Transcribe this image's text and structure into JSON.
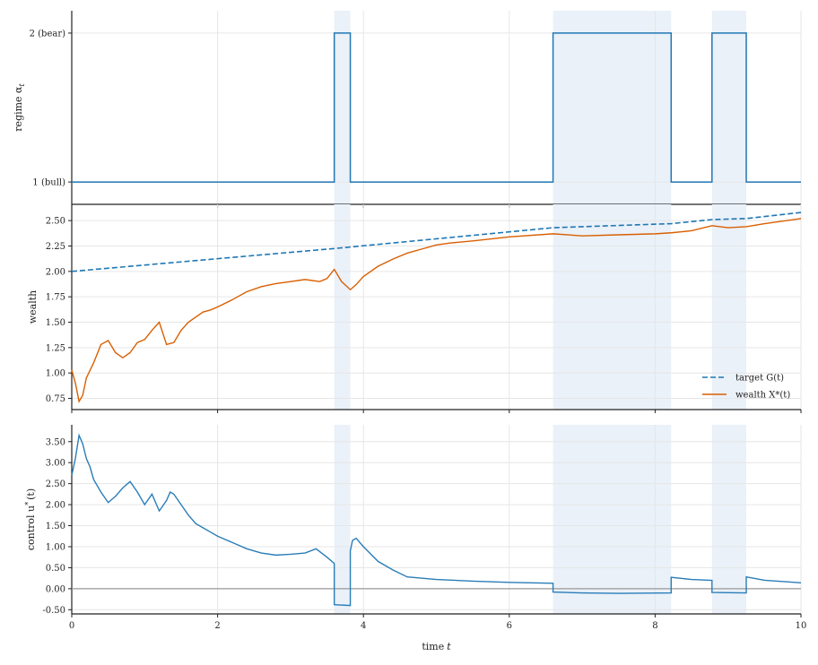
{
  "chart_data": [
    {
      "type": "line",
      "panel": "regime",
      "ylabel": "regime α",
      "ylabel_sub": "t",
      "x_range": [
        0,
        10
      ],
      "y_range": [
        0.85,
        2.15
      ],
      "y_ticks": [
        {
          "value": 1,
          "label": "1 (bull)"
        },
        {
          "value": 2,
          "label": "2 (bear)"
        }
      ],
      "step_x": [
        0,
        3.6,
        3.6,
        3.82,
        3.82,
        6.6,
        6.6,
        8.22,
        8.22,
        8.78,
        8.78,
        9.25,
        9.25,
        10
      ],
      "step_y": [
        1,
        1,
        2,
        2,
        1,
        1,
        2,
        2,
        1,
        1,
        2,
        2,
        1,
        1
      ],
      "grid": true
    },
    {
      "type": "line",
      "panel": "wealth",
      "ylabel": "wealth",
      "x_range": [
        0,
        10
      ],
      "y_range": [
        0.64,
        2.66
      ],
      "y_ticks": [
        0.75,
        1.0,
        1.25,
        1.5,
        1.75,
        2.0,
        2.25,
        2.5
      ],
      "legend_position": "lower-right",
      "series": [
        {
          "name": "target G(t)",
          "style": "dashed",
          "x": [
            0,
            3.6,
            3.82,
            6.6,
            8.22,
            8.78,
            9.25,
            10
          ],
          "y": [
            2.0,
            2.225,
            2.24,
            2.43,
            2.47,
            2.51,
            2.52,
            2.58
          ]
        },
        {
          "name": "wealth X*(t)",
          "style": "solid",
          "x": [
            0,
            0.05,
            0.1,
            0.15,
            0.2,
            0.3,
            0.4,
            0.5,
            0.6,
            0.7,
            0.8,
            0.9,
            1.0,
            1.1,
            1.2,
            1.3,
            1.4,
            1.5,
            1.6,
            1.7,
            1.8,
            1.9,
            2.0,
            2.2,
            2.4,
            2.6,
            2.8,
            3.0,
            3.2,
            3.4,
            3.5,
            3.6,
            3.7,
            3.82,
            3.9,
            4.0,
            4.2,
            4.4,
            4.6,
            4.8,
            5.0,
            5.2,
            5.5,
            6.0,
            6.6,
            7.0,
            7.5,
            8.0,
            8.22,
            8.5,
            8.78,
            9.0,
            9.25,
            9.5,
            10
          ],
          "y": [
            1.03,
            0.9,
            0.72,
            0.78,
            0.95,
            1.1,
            1.28,
            1.32,
            1.2,
            1.15,
            1.2,
            1.3,
            1.33,
            1.42,
            1.5,
            1.28,
            1.3,
            1.42,
            1.5,
            1.55,
            1.6,
            1.62,
            1.65,
            1.72,
            1.8,
            1.85,
            1.88,
            1.9,
            1.92,
            1.9,
            1.93,
            2.02,
            1.9,
            1.82,
            1.87,
            1.95,
            2.05,
            2.12,
            2.18,
            2.22,
            2.26,
            2.28,
            2.3,
            2.34,
            2.37,
            2.35,
            2.36,
            2.37,
            2.38,
            2.4,
            2.45,
            2.43,
            2.44,
            2.47,
            2.52
          ]
        }
      ],
      "grid": true
    },
    {
      "type": "line",
      "panel": "control",
      "ylabel": "control u",
      "ylabel_sup": "*",
      "ylabel_suffix": "(t)",
      "xlabel": "time",
      "xlabel_var": "t",
      "x_range": [
        0,
        10
      ],
      "x_ticks": [
        0,
        2,
        4,
        6,
        8,
        10
      ],
      "y_range": [
        -0.6,
        3.9
      ],
      "y_ticks": [
        -0.5,
        0.0,
        0.5,
        1.0,
        1.5,
        2.0,
        2.5,
        3.0,
        3.5
      ],
      "zero_line": true,
      "series": [
        {
          "name": "",
          "x": [
            0,
            0.05,
            0.1,
            0.15,
            0.2,
            0.25,
            0.3,
            0.4,
            0.5,
            0.6,
            0.7,
            0.8,
            0.9,
            1.0,
            1.1,
            1.2,
            1.3,
            1.35,
            1.4,
            1.5,
            1.6,
            1.7,
            1.8,
            1.9,
            2.0,
            2.2,
            2.4,
            2.6,
            2.8,
            3.0,
            3.2,
            3.35,
            3.5,
            3.6,
            3.6,
            3.82,
            3.82,
            3.85,
            3.9,
            4.0,
            4.2,
            4.4,
            4.6,
            5.0,
            5.5,
            6.0,
            6.6,
            6.6,
            7.0,
            7.5,
            8.22,
            8.22,
            8.5,
            8.78,
            8.78,
            9.25,
            9.25,
            9.5,
            10
          ],
          "y": [
            2.7,
            3.1,
            3.65,
            3.45,
            3.1,
            2.9,
            2.6,
            2.3,
            2.05,
            2.2,
            2.4,
            2.55,
            2.3,
            2.0,
            2.25,
            1.85,
            2.1,
            2.3,
            2.25,
            2.0,
            1.75,
            1.55,
            1.45,
            1.35,
            1.25,
            1.1,
            0.95,
            0.85,
            0.8,
            0.82,
            0.85,
            0.95,
            0.75,
            0.6,
            -0.38,
            -0.4,
            0.9,
            1.15,
            1.2,
            1.0,
            0.65,
            0.45,
            0.28,
            0.22,
            0.18,
            0.15,
            0.13,
            -0.08,
            -0.1,
            -0.11,
            -0.1,
            0.27,
            0.22,
            0.2,
            -0.09,
            -0.1,
            0.28,
            0.2,
            0.14
          ]
        }
      ],
      "grid": true
    }
  ],
  "colors": {
    "regime_line": "#2277b4",
    "target": "#1f77b4",
    "wealth": "#d95f02",
    "control": "#2a7db8",
    "shade": "#eaf1f9",
    "grid": "#e6e6e6",
    "zero_line": "#999999"
  }
}
